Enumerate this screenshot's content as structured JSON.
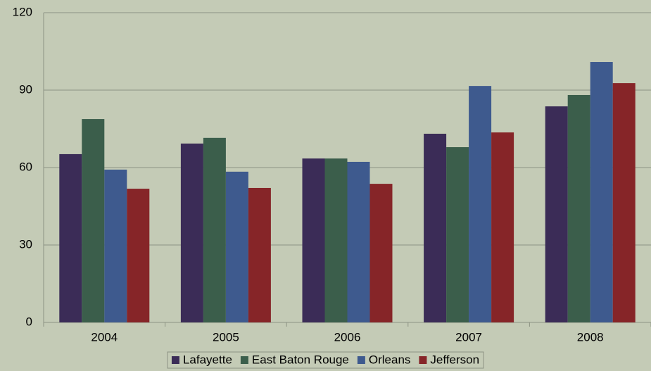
{
  "chart_data": {
    "type": "bar",
    "categories": [
      "2004",
      "2005",
      "2006",
      "2007",
      "2008"
    ],
    "series": [
      {
        "name": "Lafayette",
        "color": "#3b2c57",
        "values": [
          65.2,
          69.3,
          63.5,
          73.1,
          83.7
        ]
      },
      {
        "name": "East Baton Rouge",
        "color": "#3b5e4b",
        "values": [
          78.8,
          71.5,
          63.5,
          67.9,
          88.1
        ]
      },
      {
        "name": "Orleans",
        "color": "#3e5a8e",
        "values": [
          59.2,
          58.4,
          62.2,
          91.6,
          100.9
        ]
      },
      {
        "name": "Jefferson",
        "color": "#862528",
        "values": [
          51.8,
          52.1,
          53.7,
          73.6,
          92.7
        ]
      }
    ],
    "ylim": [
      0,
      120
    ],
    "yticks": [
      0,
      30,
      60,
      90,
      120
    ],
    "grid": true,
    "legend": "bottom"
  }
}
